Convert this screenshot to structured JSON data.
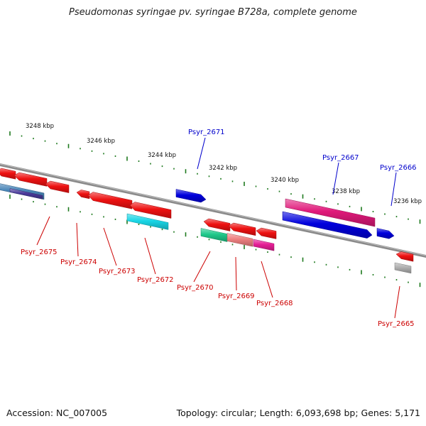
{
  "title": "Pseudomonas syringae pv. syringae B728a, complete genome",
  "footer": {
    "accession": "Accession: NC_007005",
    "summary": "Topology: circular; Length: 6,093,698 bp; Genes: 5,171"
  },
  "colors": {
    "backbone": "#8a8a8a",
    "tick": "#1e7a1e",
    "label_plus": "#0000cc",
    "label_minus": "#cc0000",
    "red": "#ee1111",
    "blue": "#0000dd",
    "magenta": "#e0197a",
    "cyan": "#19d6e6",
    "green": "#1fc98a",
    "salmon": "#ee8080",
    "pink": "#e61e96",
    "steel": "#4a86b8",
    "indigo": "#4a3a9a",
    "gray": "#b0b0b0"
  },
  "kbp_labels": [
    "3248 kbp",
    "3246 kbp",
    "3244 kbp",
    "3242 kbp",
    "3240 kbp",
    "3238 kbp",
    "3236 kbp"
  ],
  "gene_labels": [
    {
      "text": "Psyr_2671",
      "strand": "plus"
    },
    {
      "text": "Psyr_2667",
      "strand": "plus"
    },
    {
      "text": "Psyr_2666",
      "strand": "plus"
    },
    {
      "text": "Psyr_2675",
      "strand": "minus"
    },
    {
      "text": "Psyr_2674",
      "strand": "minus"
    },
    {
      "text": "Psyr_2673",
      "strand": "minus"
    },
    {
      "text": "Psyr_2672",
      "strand": "minus"
    },
    {
      "text": "Psyr_2670",
      "strand": "minus"
    },
    {
      "text": "Psyr_2669",
      "strand": "minus"
    },
    {
      "text": "Psyr_2668",
      "strand": "minus"
    },
    {
      "text": "Psyr_2665",
      "strand": "minus"
    }
  ]
}
